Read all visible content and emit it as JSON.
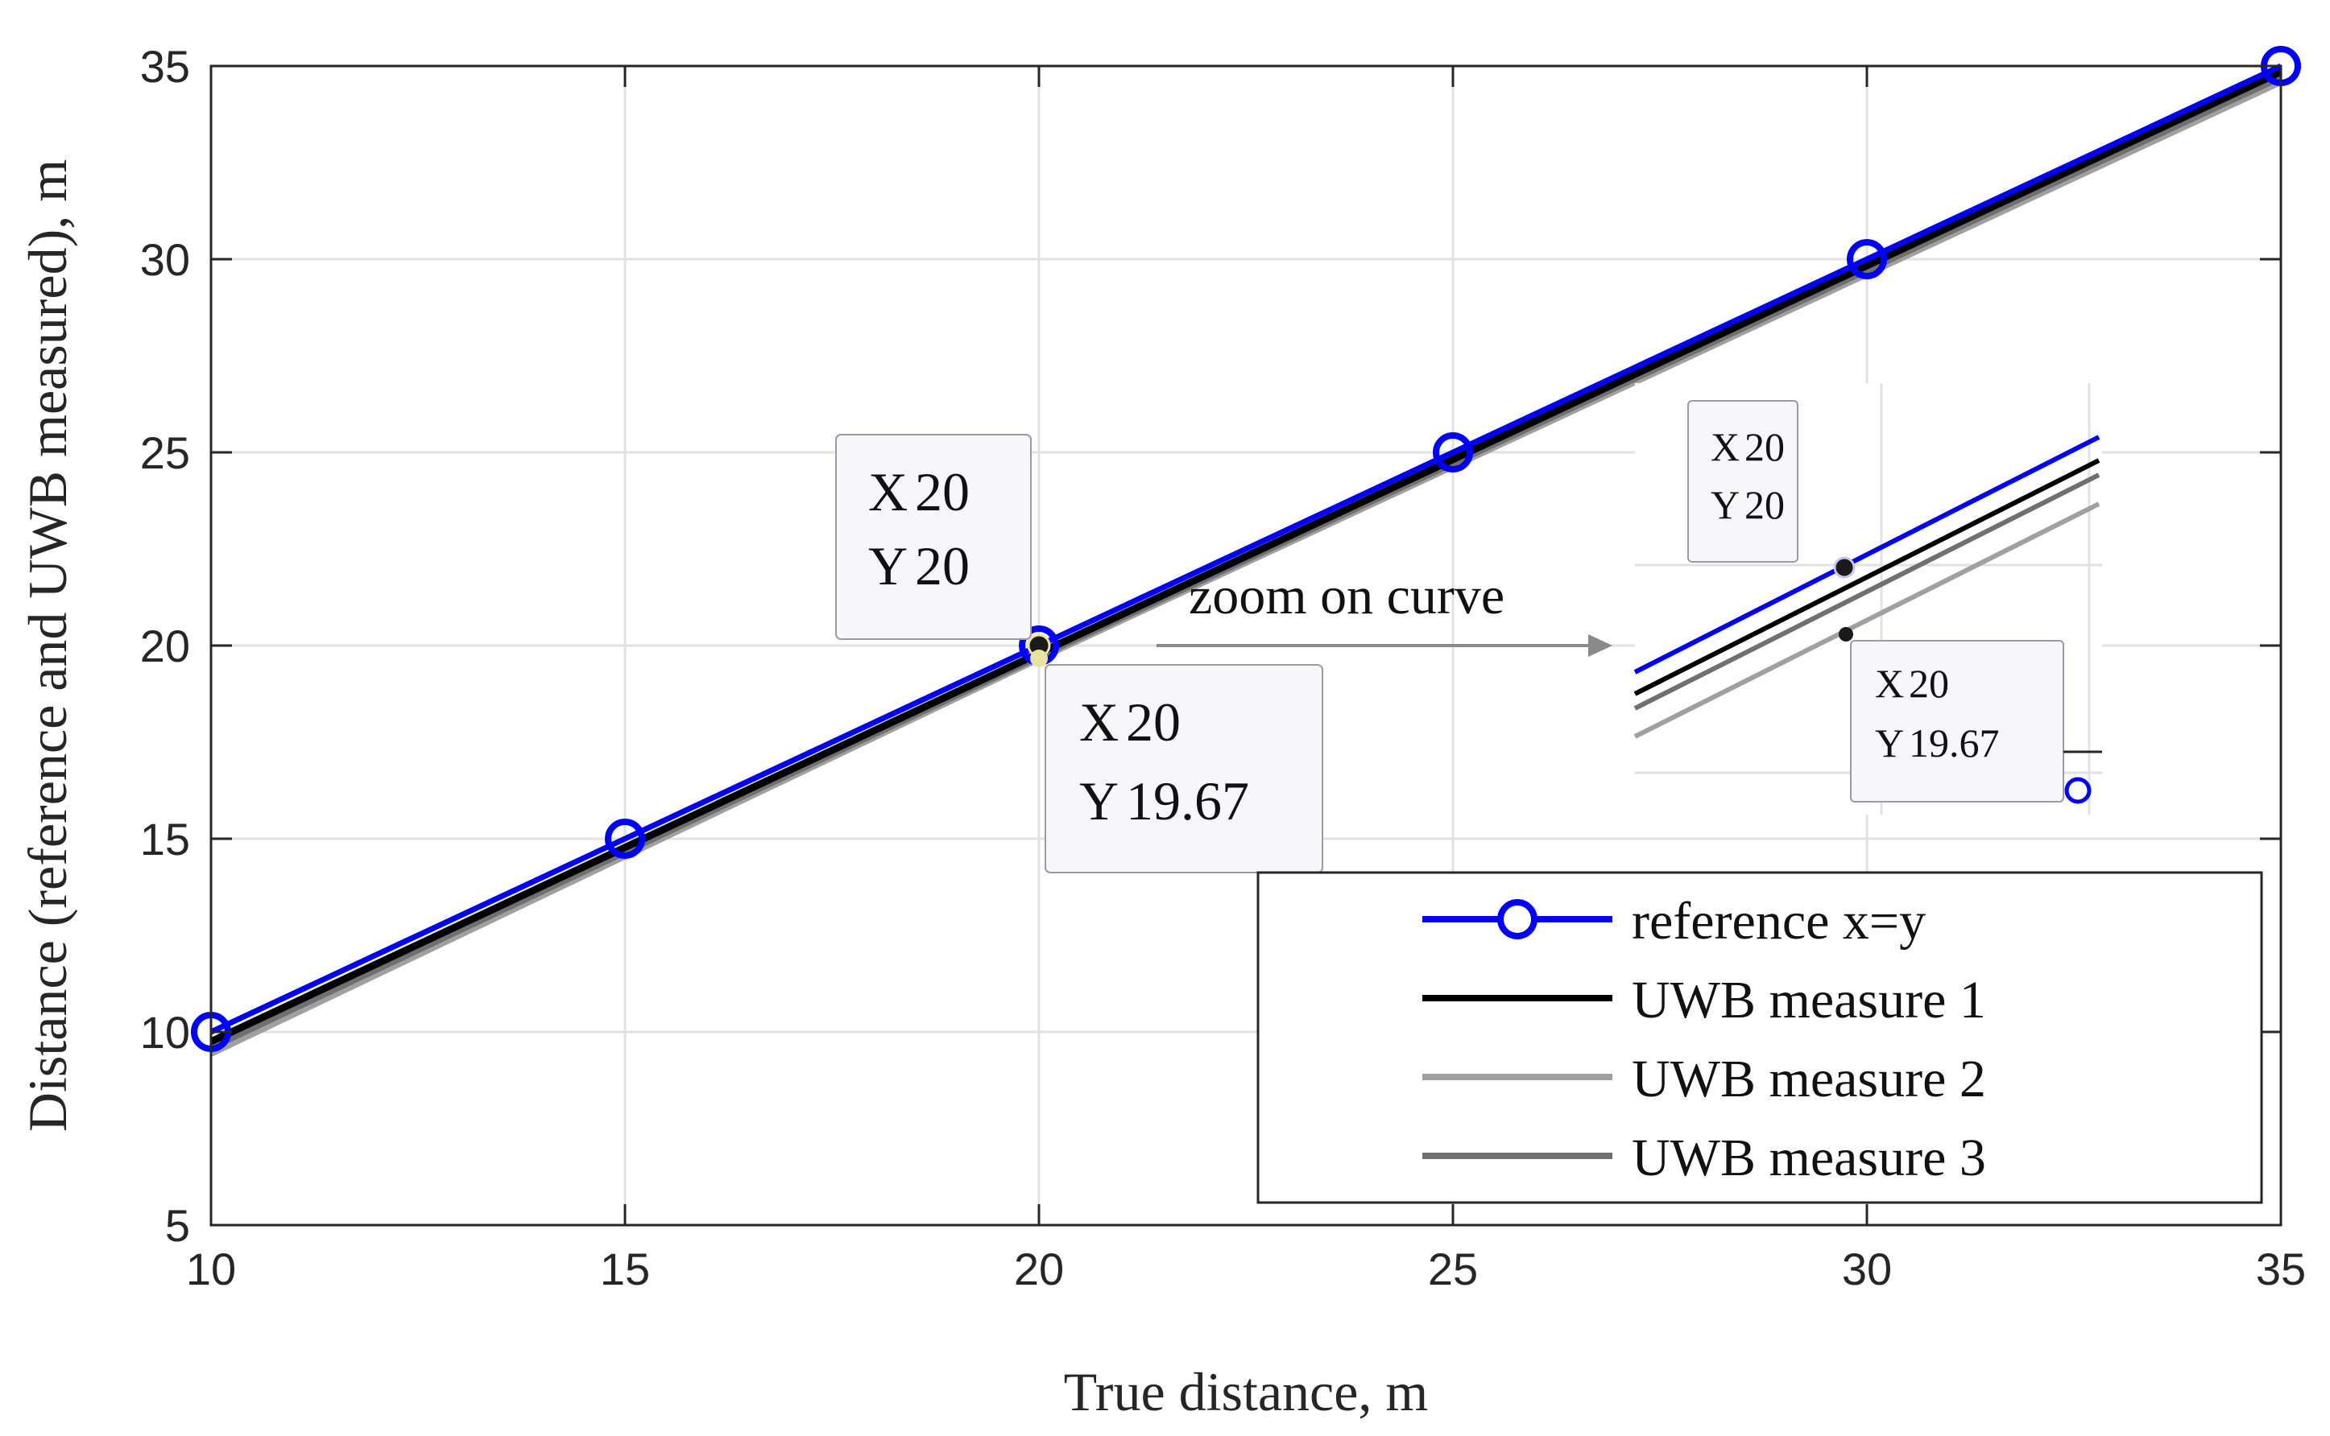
{
  "chart_data": {
    "type": "line",
    "title": "",
    "xlabel": "True distance, m",
    "ylabel": "Distance (reference and UWB measured), m",
    "xlim": [
      10,
      35
    ],
    "ylim": [
      5,
      35
    ],
    "grid": true,
    "xticks": [
      10,
      15,
      20,
      25,
      30,
      35
    ],
    "yticks": [
      5,
      10,
      15,
      20,
      25,
      30,
      35
    ],
    "series": [
      {
        "name": "reference x=y",
        "color": "#0000ff",
        "marker": "circle",
        "x": [
          10,
          15,
          20,
          25,
          30,
          35
        ],
        "y": [
          10,
          15,
          20,
          25,
          30,
          35
        ]
      },
      {
        "name": "UWB measure 1",
        "color": "#000000",
        "marker": "none",
        "x": [
          10,
          20,
          35
        ],
        "y": [
          9.75,
          19.8,
          34.85
        ]
      },
      {
        "name": "UWB measure 2",
        "color": "#a0a0a0",
        "marker": "none",
        "x": [
          10,
          20,
          35
        ],
        "y": [
          9.45,
          19.67,
          34.6
        ]
      },
      {
        "name": "UWB measure 3",
        "color": "#707070",
        "marker": "none",
        "x": [
          10,
          20,
          35
        ],
        "y": [
          9.6,
          19.73,
          34.72
        ]
      }
    ],
    "legend_location": "bottom-right",
    "datatips": [
      {
        "x_label": "X",
        "x_value": "20",
        "y_label": "Y",
        "y_value": "20",
        "x": 20,
        "y": 20
      },
      {
        "x_label": "X",
        "x_value": "20",
        "y_label": "Y",
        "y_value": "19.67",
        "x": 20,
        "y": 19.67
      }
    ],
    "annotation": "zoom on curve",
    "inset": {
      "datatips": [
        {
          "x_label": "X",
          "x_value": "20",
          "y_label": "Y",
          "y_value": "20"
        },
        {
          "x_label": "X",
          "x_value": "20",
          "y_label": "Y",
          "y_value": "19.67"
        }
      ]
    }
  }
}
